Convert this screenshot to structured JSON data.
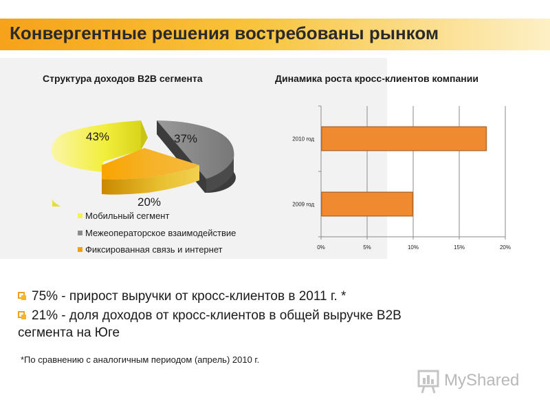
{
  "slide": {
    "title": "Конвергентные решения востребованы рынком",
    "bullets": [
      "75% - прирост выручки от кросс-клиентов в 2011 г. *",
      "21% - доля доходов от кросс-клиентов в общей выручке B2B",
      "сегмента на Юге"
    ],
    "footnote": "*По сравнению с аналогичным периодом  (апрель) 2010 г.",
    "logo_text": "MyShared"
  },
  "colors": {
    "accent_orange": "#f6a21a",
    "bar_orange": "#f08a30",
    "pie_yellow": "#f4f24a",
    "pie_gray": "#8c8c8c",
    "pie_orange": "#f0a010"
  },
  "chart_data": [
    {
      "type": "pie",
      "title": "Структура доходов B2B сегмента",
      "labels": [
        "Мобильный сегмент",
        "Межеоператорское взаимодействие",
        "Фиксированная связь и интернет"
      ],
      "values": [
        43,
        37,
        20
      ],
      "value_labels": [
        "43%",
        "37%",
        "20%"
      ],
      "legend_position": "bottom-left",
      "style": "3d-exploded"
    },
    {
      "type": "bar",
      "orientation": "horizontal",
      "title": "Динамика роста кросс-клиентов компании",
      "categories": [
        "2009 год",
        "2010 год"
      ],
      "values": [
        0.1,
        0.18
      ],
      "xlim": [
        0,
        0.2
      ],
      "xticks": [
        "0%",
        "5%",
        "10%",
        "15%",
        "20%"
      ],
      "grid": true
    }
  ]
}
